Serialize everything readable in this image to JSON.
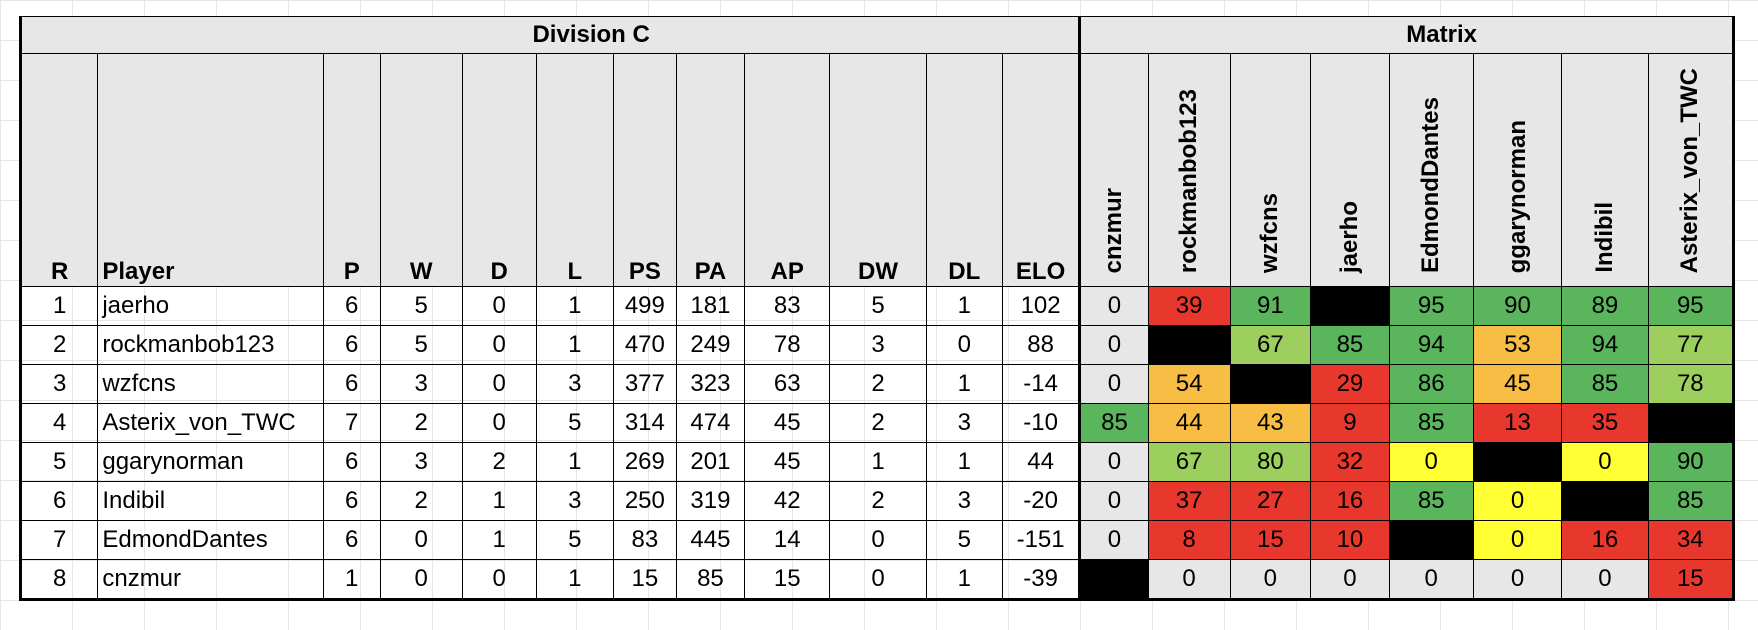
{
  "division_title": "Division C",
  "matrix_title": "Matrix",
  "columns": [
    "R",
    "Player",
    "P",
    "W",
    "D",
    "L",
    "PS",
    "PA",
    "AP",
    "DW",
    "DL",
    "ELO"
  ],
  "matrix_columns": [
    "cnzmur",
    "rockmanbob123",
    "wzfcns",
    "jaerho",
    "EdmondDantes",
    "ggarynorman",
    "Indibil",
    "Asterix_von_TWC"
  ],
  "colors": {
    "green": "#5bb55d",
    "light_green": "#9ccf5d",
    "orange": "#f8bd44",
    "red": "#e8372d",
    "yellow": "#ffff33",
    "gray": "#e7e7e7",
    "black": "#000000"
  },
  "rows": [
    {
      "cells": [
        "1",
        "jaerho",
        "6",
        "5",
        "0",
        "1",
        "499",
        "181",
        "83",
        "5",
        "1",
        "102"
      ],
      "matrix": [
        {
          "v": "0",
          "c": "gray"
        },
        {
          "v": "39",
          "c": "red"
        },
        {
          "v": "91",
          "c": "green"
        },
        {
          "v": "",
          "c": "black"
        },
        {
          "v": "95",
          "c": "green"
        },
        {
          "v": "90",
          "c": "green"
        },
        {
          "v": "89",
          "c": "green"
        },
        {
          "v": "95",
          "c": "green"
        }
      ]
    },
    {
      "cells": [
        "2",
        "rockmanbob123",
        "6",
        "5",
        "0",
        "1",
        "470",
        "249",
        "78",
        "3",
        "0",
        "88"
      ],
      "matrix": [
        {
          "v": "0",
          "c": "gray"
        },
        {
          "v": "",
          "c": "black"
        },
        {
          "v": "67",
          "c": "lgreen"
        },
        {
          "v": "85",
          "c": "green"
        },
        {
          "v": "94",
          "c": "green"
        },
        {
          "v": "53",
          "c": "orange"
        },
        {
          "v": "94",
          "c": "green"
        },
        {
          "v": "77",
          "c": "lgreen"
        }
      ]
    },
    {
      "cells": [
        "3",
        "wzfcns",
        "6",
        "3",
        "0",
        "3",
        "377",
        "323",
        "63",
        "2",
        "1",
        "-14"
      ],
      "matrix": [
        {
          "v": "0",
          "c": "gray"
        },
        {
          "v": "54",
          "c": "orange"
        },
        {
          "v": "",
          "c": "black"
        },
        {
          "v": "29",
          "c": "red"
        },
        {
          "v": "86",
          "c": "green"
        },
        {
          "v": "45",
          "c": "orange"
        },
        {
          "v": "85",
          "c": "green"
        },
        {
          "v": "78",
          "c": "lgreen"
        }
      ]
    },
    {
      "cells": [
        "4",
        "Asterix_von_TWC",
        "7",
        "2",
        "0",
        "5",
        "314",
        "474",
        "45",
        "2",
        "3",
        "-10"
      ],
      "matrix": [
        {
          "v": "85",
          "c": "green"
        },
        {
          "v": "44",
          "c": "orange"
        },
        {
          "v": "43",
          "c": "orange"
        },
        {
          "v": "9",
          "c": "red"
        },
        {
          "v": "85",
          "c": "green"
        },
        {
          "v": "13",
          "c": "red"
        },
        {
          "v": "35",
          "c": "red"
        },
        {
          "v": "",
          "c": "black"
        }
      ]
    },
    {
      "cells": [
        "5",
        "ggarynorman",
        "6",
        "3",
        "2",
        "1",
        "269",
        "201",
        "45",
        "1",
        "1",
        "44"
      ],
      "matrix": [
        {
          "v": "0",
          "c": "gray"
        },
        {
          "v": "67",
          "c": "lgreen"
        },
        {
          "v": "80",
          "c": "lgreen"
        },
        {
          "v": "32",
          "c": "red"
        },
        {
          "v": "0",
          "c": "yellow"
        },
        {
          "v": "",
          "c": "black"
        },
        {
          "v": "0",
          "c": "yellow"
        },
        {
          "v": "90",
          "c": "green"
        }
      ]
    },
    {
      "cells": [
        "6",
        "Indibil",
        "6",
        "2",
        "1",
        "3",
        "250",
        "319",
        "42",
        "2",
        "3",
        "-20"
      ],
      "matrix": [
        {
          "v": "0",
          "c": "gray"
        },
        {
          "v": "37",
          "c": "red"
        },
        {
          "v": "27",
          "c": "red"
        },
        {
          "v": "16",
          "c": "red"
        },
        {
          "v": "85",
          "c": "green"
        },
        {
          "v": "0",
          "c": "yellow"
        },
        {
          "v": "",
          "c": "black"
        },
        {
          "v": "85",
          "c": "green"
        }
      ]
    },
    {
      "cells": [
        "7",
        "EdmondDantes",
        "6",
        "0",
        "1",
        "5",
        "83",
        "445",
        "14",
        "0",
        "5",
        "-151"
      ],
      "matrix": [
        {
          "v": "0",
          "c": "gray"
        },
        {
          "v": "8",
          "c": "red"
        },
        {
          "v": "15",
          "c": "red"
        },
        {
          "v": "10",
          "c": "red"
        },
        {
          "v": "",
          "c": "black"
        },
        {
          "v": "0",
          "c": "yellow"
        },
        {
          "v": "16",
          "c": "red"
        },
        {
          "v": "34",
          "c": "red"
        }
      ]
    },
    {
      "cells": [
        "8",
        "cnzmur",
        "1",
        "0",
        "0",
        "1",
        "15",
        "85",
        "15",
        "0",
        "1",
        "-39"
      ],
      "matrix": [
        {
          "v": "",
          "c": "black"
        },
        {
          "v": "0",
          "c": "gray"
        },
        {
          "v": "0",
          "c": "gray"
        },
        {
          "v": "0",
          "c": "gray"
        },
        {
          "v": "0",
          "c": "gray"
        },
        {
          "v": "0",
          "c": "gray"
        },
        {
          "v": "0",
          "c": "gray"
        },
        {
          "v": "15",
          "c": "red"
        }
      ]
    }
  ]
}
